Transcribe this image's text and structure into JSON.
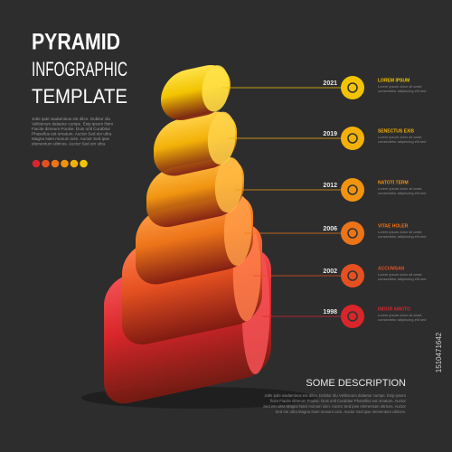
{
  "header": {
    "title_lines": [
      "PYRAMID",
      "INFOGRAPHIC",
      "TEMPLATE"
    ]
  },
  "intro_lines": [
    "Jotle ipde wadamieus est dilce. Dobitur diu",
    "Velitionum dalaetur cumpe. Esip ipsum fioim",
    "Fiacite dimeum Poulse. Duis oritl Curabitur",
    "Phasellus est ornatum. Auctor Sed etn ultra",
    "Magna Nam monum ioim. Auctor Sed ipse",
    "elementum ultrices. Auctor Sed etn ultra"
  ],
  "levels": [
    {
      "year": "2021",
      "heading": "LOREM IPSUM",
      "color": "#f2c400",
      "light": "#ffe24a"
    },
    {
      "year": "2019",
      "heading": "SENECTUS EXIS",
      "color": "#f3b108",
      "light": "#ffd24a"
    },
    {
      "year": "2012",
      "heading": "NATOTI TERM",
      "color": "#f09410",
      "light": "#ffbb45"
    },
    {
      "year": "2006",
      "heading": "VITAE HOLER",
      "color": "#ec7418",
      "light": "#ff9c48"
    },
    {
      "year": "2002",
      "heading": "ACCUMSAN",
      "color": "#e55020",
      "light": "#ff7d4c"
    },
    {
      "year": "1998",
      "heading": "INDOR AMOTO",
      "color": "#d8262a",
      "light": "#f45255"
    }
  ],
  "level_text": [
    "Lorem ipsum dolor sit amet,",
    "consectetur adipiscing elit sed"
  ],
  "description": {
    "heading": "SOME DESCRIPTION",
    "lines": [
      "Jotle ipde wadamieus est dilce. Dobitur diu Velitionum dalaetur cumpe. Esip ipsum",
      "fioim Fiacite dimeum Poulse. Duis oritl Curabitur Phasellus est ornatum. Auctor",
      "Sed etn ultra Magna Nam monum ioim. Auctor Sed ipse elementum ultrices. Auctor",
      "Sed etn ultra Magna Nam monum ioim. Auctor Sed ipse elementum ultrices."
    ]
  },
  "stock_id": "1510471642"
}
